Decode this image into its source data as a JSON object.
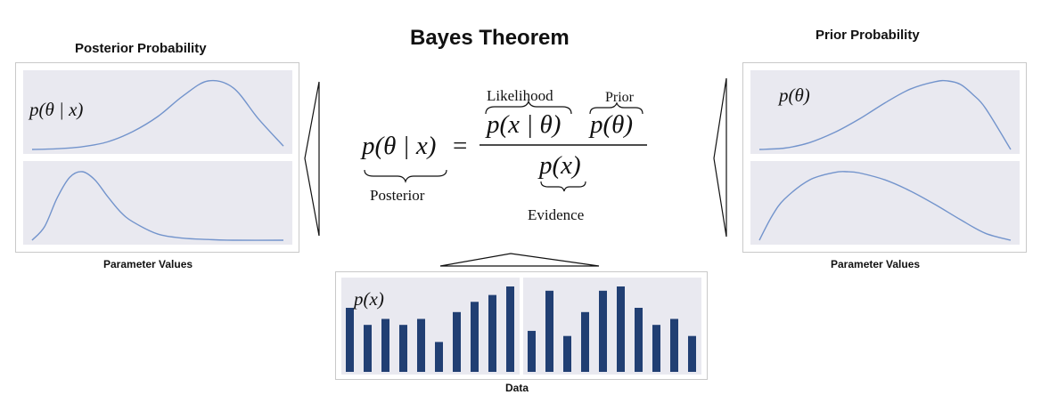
{
  "title": "Bayes Theorem",
  "posterior_box": {
    "heading": "Posterior Probability",
    "label": "p(θ | x)",
    "axis_caption": "Parameter Values",
    "curves": [
      {
        "x": [
          0,
          0.1,
          0.2,
          0.3,
          0.4,
          0.5,
          0.6,
          0.7,
          0.8,
          0.9,
          1.0
        ],
        "y": [
          0.0,
          0.01,
          0.04,
          0.11,
          0.26,
          0.48,
          0.78,
          1.0,
          0.9,
          0.45,
          0.05
        ]
      },
      {
        "x": [
          0,
          0.05,
          0.1,
          0.15,
          0.2,
          0.25,
          0.3,
          0.35,
          0.4,
          0.5,
          0.6,
          0.7,
          0.8,
          1.0
        ],
        "y": [
          0.0,
          0.2,
          0.62,
          0.92,
          1.0,
          0.88,
          0.64,
          0.42,
          0.27,
          0.09,
          0.03,
          0.01,
          0.0,
          0.0
        ]
      }
    ]
  },
  "prior_box": {
    "heading": "Prior Probability",
    "label": "p(θ)",
    "axis_caption": "Parameter Values",
    "curves": [
      {
        "x": [
          0,
          0.1,
          0.2,
          0.3,
          0.4,
          0.5,
          0.6,
          0.7,
          0.75,
          0.8,
          0.85,
          0.9,
          1.0
        ],
        "y": [
          0.0,
          0.02,
          0.1,
          0.25,
          0.45,
          0.68,
          0.88,
          0.99,
          1.0,
          0.95,
          0.8,
          0.6,
          0.0
        ]
      },
      {
        "x": [
          0,
          0.05,
          0.1,
          0.2,
          0.3,
          0.35,
          0.4,
          0.5,
          0.6,
          0.7,
          0.8,
          0.9,
          1.0
        ],
        "y": [
          0.0,
          0.35,
          0.6,
          0.88,
          0.99,
          1.0,
          0.98,
          0.88,
          0.72,
          0.52,
          0.3,
          0.1,
          0.0
        ]
      }
    ]
  },
  "formula": {
    "lhs": "p(θ | x)",
    "equals": "=",
    "likelihood_term": "p(x | θ)",
    "prior_term": "p(θ)",
    "evidence_term": "p(x)",
    "likelihood_label": "Likelihood",
    "prior_label": "Prior",
    "posterior_label": "Posterior",
    "evidence_label": "Evidence"
  },
  "data_box": {
    "label": "p(x)",
    "caption": "Data",
    "groups": [
      {
        "values": [
          0.75,
          0.55,
          0.62,
          0.55,
          0.62,
          0.35,
          0.7,
          0.82,
          0.9,
          1.0
        ]
      },
      {
        "values": [
          0.48,
          0.95,
          0.42,
          0.7,
          0.95,
          1.0,
          0.75,
          0.55,
          0.62,
          0.42
        ]
      }
    ]
  },
  "colors": {
    "curve": "#7394cc",
    "bar": "#213f73",
    "panel": "#e9e9f0",
    "frame": "#c9c9c9"
  }
}
